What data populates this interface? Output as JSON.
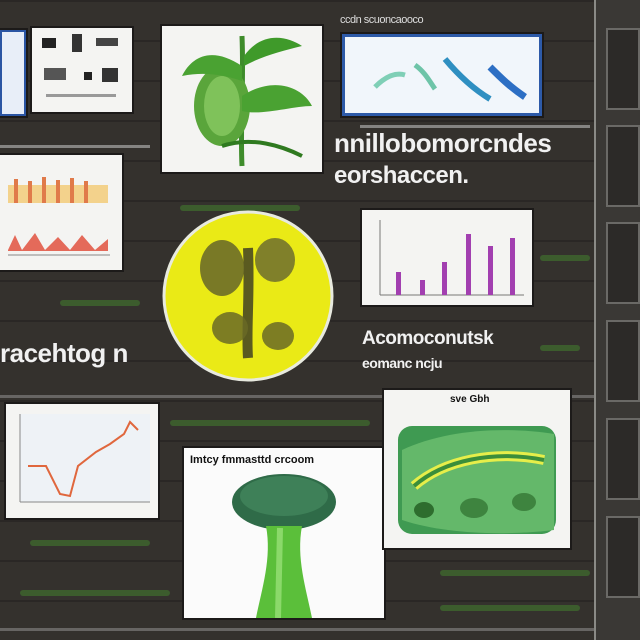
{
  "title_line_1": "nnillobomorcndes",
  "title_line_2": "eorshaccen.",
  "side_label": "racehtog n",
  "sub_title_1": "Acomoconutsk",
  "sub_title_2": "eomanc ncju",
  "card_header_mushroom": "Imtcy fmmasttd crcoom",
  "card_header_leaf": "sve Gbh",
  "top_caption": "ccdn scuoncaooco",
  "colors": {
    "board": "#2f2c29",
    "plant_green": "#4caf3a",
    "circle_yellow": "#eaea16",
    "bar_purple": "#a23fb0",
    "line_orange": "#e0673d"
  }
}
